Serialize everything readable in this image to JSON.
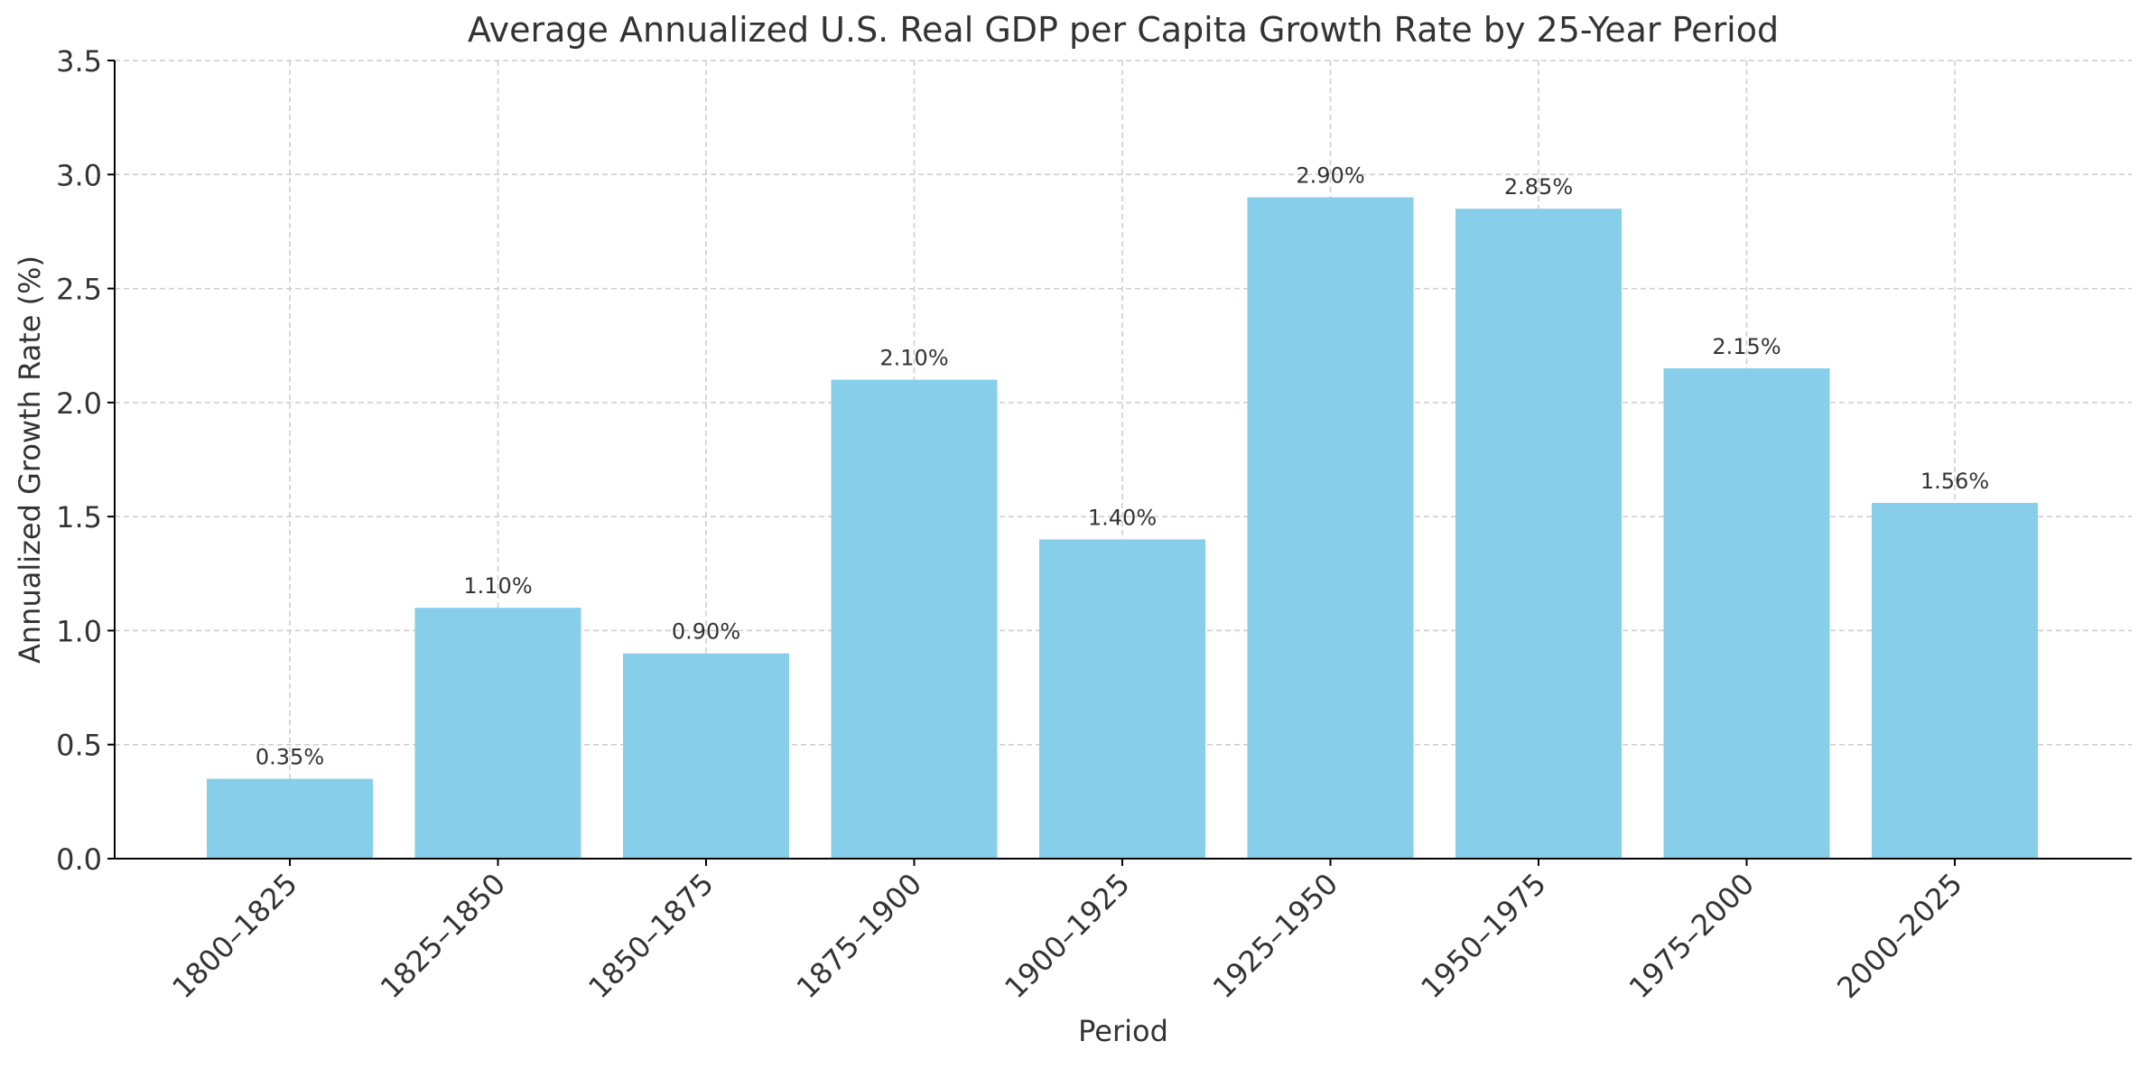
{
  "chart_data": {
    "type": "bar",
    "title": "Average Annualized U.S. Real GDP per Capita Growth Rate by 25-Year Period",
    "xlabel": "Period",
    "ylabel": "Annualized Growth Rate (%)",
    "categories": [
      "1800–1825",
      "1825–1850",
      "1850–1875",
      "1875–1900",
      "1900–1925",
      "1925–1950",
      "1950–1975",
      "1975–2000",
      "2000–2025"
    ],
    "values": [
      0.35,
      1.1,
      0.9,
      2.1,
      1.4,
      2.9,
      2.85,
      2.15,
      1.56
    ],
    "data_labels": [
      "0.35%",
      "1.10%",
      "0.90%",
      "2.10%",
      "1.40%",
      "2.90%",
      "2.85%",
      "2.15%",
      "1.56%"
    ],
    "ylim": [
      0,
      3.5
    ],
    "yticks": [
      0.0,
      0.5,
      1.0,
      1.5,
      2.0,
      2.5,
      3.0,
      3.5
    ],
    "ytick_labels": [
      "0.0",
      "0.5",
      "1.0",
      "1.5",
      "2.0",
      "2.5",
      "3.0",
      "3.5"
    ],
    "grid": true,
    "legend": false,
    "bar_color": "#87CEEB",
    "text_color": "#333333",
    "grid_color": "#cccccc"
  }
}
